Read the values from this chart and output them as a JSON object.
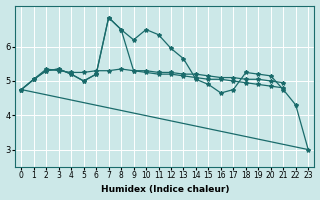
{
  "xlabel": "Humidex (Indice chaleur)",
  "background_color": "#cce8e8",
  "grid_color": "#ffffff",
  "line_color": "#1a6b6b",
  "xlim": [
    -0.5,
    23.5
  ],
  "ylim": [
    2.5,
    7.2
  ],
  "xticks": [
    0,
    1,
    2,
    3,
    4,
    5,
    6,
    7,
    8,
    9,
    10,
    11,
    12,
    13,
    14,
    15,
    16,
    17,
    18,
    19,
    20,
    21,
    22,
    23
  ],
  "yticks": [
    3,
    4,
    5,
    6
  ],
  "series1_x": [
    0,
    1,
    2,
    3,
    4,
    5,
    6,
    7,
    8,
    9,
    10,
    11,
    12,
    13,
    14,
    15,
    16,
    17,
    18,
    19,
    20,
    21,
    22,
    23
  ],
  "series1_y": [
    4.75,
    5.05,
    5.3,
    5.35,
    5.2,
    5.0,
    5.2,
    6.85,
    6.5,
    6.2,
    6.5,
    6.35,
    5.95,
    5.65,
    5.05,
    4.9,
    4.65,
    4.75,
    5.25,
    5.2,
    5.15,
    4.75,
    4.3,
    3.0
  ],
  "series2_x": [
    0,
    1,
    2,
    3,
    4,
    5,
    6,
    7,
    8,
    9,
    10,
    11,
    12,
    13,
    14,
    15,
    16,
    17,
    18,
    19,
    20,
    21
  ],
  "series2_y": [
    4.75,
    5.05,
    5.35,
    5.3,
    5.25,
    5.25,
    5.3,
    5.3,
    5.35,
    5.3,
    5.3,
    5.25,
    5.25,
    5.2,
    5.2,
    5.15,
    5.1,
    5.1,
    5.05,
    5.05,
    5.0,
    4.95
  ],
  "series3_x": [
    0,
    1,
    2,
    3,
    4,
    5,
    6,
    7,
    8,
    9,
    10,
    11,
    12,
    13,
    14,
    15,
    16,
    17,
    18,
    19,
    20,
    21
  ],
  "series3_y": [
    4.75,
    5.05,
    5.3,
    5.35,
    5.2,
    5.0,
    5.2,
    6.85,
    6.5,
    5.3,
    5.25,
    5.2,
    5.2,
    5.15,
    5.1,
    5.05,
    5.05,
    5.0,
    4.95,
    4.9,
    4.85,
    4.8
  ],
  "series4_x": [
    0,
    23
  ],
  "series4_y": [
    4.75,
    3.0
  ]
}
